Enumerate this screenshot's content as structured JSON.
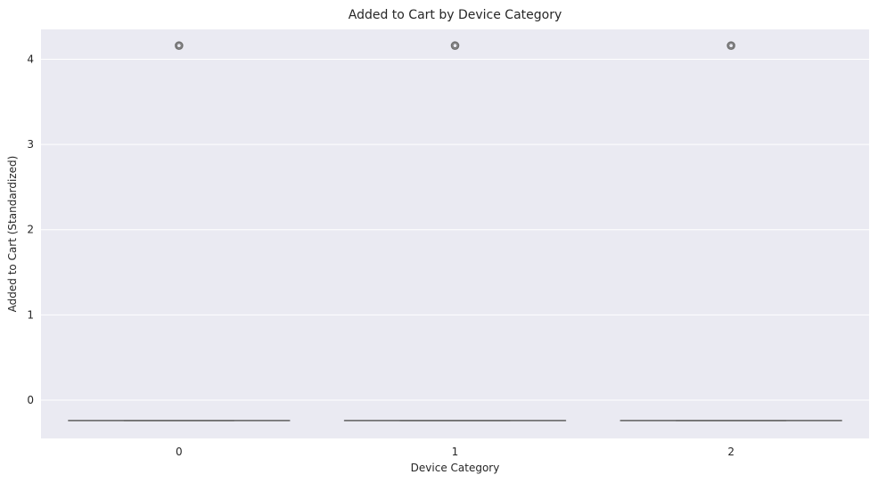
{
  "chart_data": {
    "type": "boxplot",
    "title": "Added to Cart by Device Category",
    "xlabel": "Device Category",
    "ylabel": "Added to Cart (Standardized)",
    "categories": [
      "0",
      "1",
      "2"
    ],
    "yticks": [
      0,
      1,
      2,
      3,
      4
    ],
    "ylim": [
      -0.45,
      4.35
    ],
    "grid": true,
    "colors": {
      "background": "#EAEAF2",
      "grid": "#FFFFFF",
      "box_line": "#707070",
      "outlier": "#707070"
    },
    "boxes": [
      {
        "category": "0",
        "whisker_low": -0.24,
        "q1": -0.24,
        "median": -0.24,
        "q3": -0.24,
        "whisker_high": -0.24,
        "outliers": [
          4.16
        ]
      },
      {
        "category": "1",
        "whisker_low": -0.24,
        "q1": -0.24,
        "median": -0.24,
        "q3": -0.24,
        "whisker_high": -0.24,
        "outliers": [
          4.16
        ]
      },
      {
        "category": "2",
        "whisker_low": -0.24,
        "q1": -0.24,
        "median": -0.24,
        "q3": -0.24,
        "whisker_high": -0.24,
        "outliers": [
          4.16
        ]
      }
    ]
  }
}
